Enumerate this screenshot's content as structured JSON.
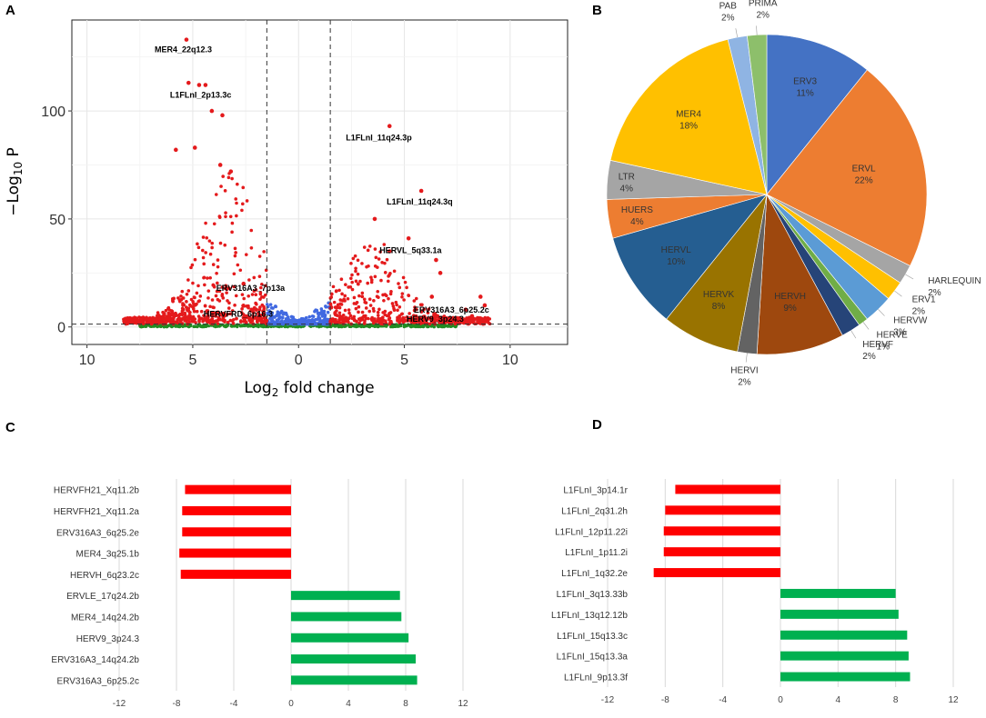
{
  "chart_data": [
    {
      "type": "scatter",
      "panel": "A",
      "xlabel": "Log2 fold change",
      "ylabel": "-Log10 P",
      "x_ticks": [
        "10",
        "5",
        "0",
        "5",
        "10"
      ],
      "x_tick_values": [
        -10,
        -5,
        0,
        5,
        10
      ],
      "y_ticks": [
        "0",
        "50",
        "100"
      ],
      "y_tick_values": [
        0,
        50,
        100
      ],
      "xlim": [
        -10.5,
        12.5
      ],
      "ylim": [
        -6,
        140
      ],
      "fc_cutoff": 1.5,
      "p_cutoff": 1.3,
      "colors": {
        "significant": "#e41a1c",
        "nonsig_fc": "#4169e1",
        "ns": "#228b22"
      },
      "labeled_points": [
        {
          "label": "MER4_22q12.3",
          "x": -5.3,
          "y": 133
        },
        {
          "label": "L1FLnI_2p13.3c",
          "x": -4.7,
          "y": 112
        },
        {
          "label": "L1FLnI_11q24.3p",
          "x": 4.3,
          "y": 93
        },
        {
          "label": "L1FLnI_11q24.3q",
          "x": 5.8,
          "y": 63
        },
        {
          "label": "HERVL_5q33.1a",
          "x": 5.2,
          "y": 41
        },
        {
          "label": "ERV316A3_7p13a",
          "x": -2.6,
          "y": 20
        },
        {
          "label": "HERVFRD_6p16.3",
          "x": -2.0,
          "y": 8
        },
        {
          "label": "ERV316A3_6p25.2c",
          "x": 8.8,
          "y": 10
        },
        {
          "label": "HERV9_3p24.3",
          "x": 8.2,
          "y": 5
        }
      ],
      "highlight_points": [
        {
          "x": -5.2,
          "y": 113
        },
        {
          "x": -4.4,
          "y": 112
        },
        {
          "x": -4.1,
          "y": 100
        },
        {
          "x": -3.6,
          "y": 98
        },
        {
          "x": -4.9,
          "y": 83
        },
        {
          "x": -5.8,
          "y": 82
        },
        {
          "x": -3.7,
          "y": 75
        },
        {
          "x": -3.2,
          "y": 72
        },
        {
          "x": 3.6,
          "y": 50
        },
        {
          "x": 4.3,
          "y": 35
        },
        {
          "x": 6.5,
          "y": 31
        },
        {
          "x": 6.7,
          "y": 25
        },
        {
          "x": 6.3,
          "y": 14
        },
        {
          "x": 7.9,
          "y": 8
        },
        {
          "x": 8.6,
          "y": 14
        }
      ]
    },
    {
      "type": "pie",
      "panel": "B",
      "slices": [
        {
          "label": "ERV3",
          "value": 11,
          "pct": "11%",
          "color": "#4472c4"
        },
        {
          "label": "ERVL",
          "value": 22,
          "pct": "22%",
          "color": "#ed7d31"
        },
        {
          "label": "HARLEQUIN",
          "value": 2,
          "pct": "2%",
          "color": "#a5a5a5"
        },
        {
          "label": "ERV1",
          "value": 2,
          "pct": "2%",
          "color": "#ffc000"
        },
        {
          "label": "HERVW",
          "value": 3,
          "pct": "3%",
          "color": "#5b9bd5"
        },
        {
          "label": "HERVE",
          "value": 1,
          "pct": "1%",
          "color": "#70ad47"
        },
        {
          "label": "HERVF",
          "value": 2,
          "pct": "2%",
          "color": "#264478"
        },
        {
          "label": "HERVH",
          "value": 9,
          "pct": "9%",
          "color": "#9e480e"
        },
        {
          "label": "HERVI",
          "value": 2,
          "pct": "2%",
          "color": "#636363"
        },
        {
          "label": "HERVK",
          "value": 8,
          "pct": "8%",
          "color": "#997300"
        },
        {
          "label": "HERVL",
          "value": 10,
          "pct": "10%",
          "color": "#255e91"
        },
        {
          "label": "HUERS",
          "value": 4,
          "pct": "4%",
          "color": "#ed7d31"
        },
        {
          "label": "LTR",
          "value": 4,
          "pct": "4%",
          "color": "#a5a5a5"
        },
        {
          "label": "MER4",
          "value": 18,
          "pct": "18%",
          "color": "#ffc000"
        },
        {
          "label": "PAB",
          "value": 2,
          "pct": "2%",
          "color": "#8fb4e3"
        },
        {
          "label": "PRIMA",
          "value": 2,
          "pct": "2%",
          "color": "#8dbf6b"
        }
      ]
    },
    {
      "type": "bar",
      "panel": "C",
      "orientation": "horizontal",
      "categories": [
        "HERVFH21_Xq11.2b",
        "HERVFH21_Xq11.2a",
        "ERV316A3_6q25.2e",
        "MER4_3q25.1b",
        "HERVH_6q23.2c",
        "ERVLE_17q24.2b",
        "MER4_14q24.2b",
        "HERV9_3p24.3",
        "ERV316A3_14q24.2b",
        "ERV316A3_6p25.2c"
      ],
      "values": [
        -7.4,
        -7.6,
        -7.6,
        -7.8,
        -7.7,
        7.6,
        7.7,
        8.2,
        8.7,
        8.8
      ],
      "xlim": [
        -12,
        12
      ],
      "x_ticks": [
        "-12",
        "-8",
        "-4",
        "0",
        "4",
        "8",
        "12"
      ],
      "x_tick_values": [
        -12,
        -8,
        -4,
        0,
        4,
        8,
        12
      ],
      "colors": {
        "negative": "#ff0000",
        "positive": "#00b050"
      }
    },
    {
      "type": "bar",
      "panel": "D",
      "orientation": "horizontal",
      "categories": [
        "L1FLnI_3p14.1r",
        "L1FLnI_2q31.2h",
        "L1FLnI_12p11.22i",
        "L1FLnI_1p11.2i",
        "L1FLnI_1q32.2e",
        "L1FLnI_3q13.33b",
        "L1FLnI_13q12.12b",
        "L1FLnI_15q13.3c",
        "L1FLnI_15q13.3a",
        "L1FLnI_9p13.3f"
      ],
      "values": [
        -7.3,
        -8.0,
        -8.1,
        -8.1,
        -8.8,
        8.0,
        8.2,
        8.8,
        8.9,
        9.0
      ],
      "xlim": [
        -12,
        12
      ],
      "x_ticks": [
        "-12",
        "-8",
        "-4",
        "0",
        "4",
        "8",
        "12"
      ],
      "x_tick_values": [
        -12,
        -8,
        -4,
        0,
        4,
        8,
        12
      ],
      "colors": {
        "negative": "#ff0000",
        "positive": "#00b050"
      }
    }
  ],
  "panels": {
    "a": "A",
    "b": "B",
    "c": "C",
    "d": "D"
  },
  "axis_a": {
    "y_prefix": "−Log",
    "y_sub": "10",
    "y_suffix": " P",
    "x_prefix": "Log",
    "x_sub": "2",
    "x_suffix": " fold change"
  }
}
